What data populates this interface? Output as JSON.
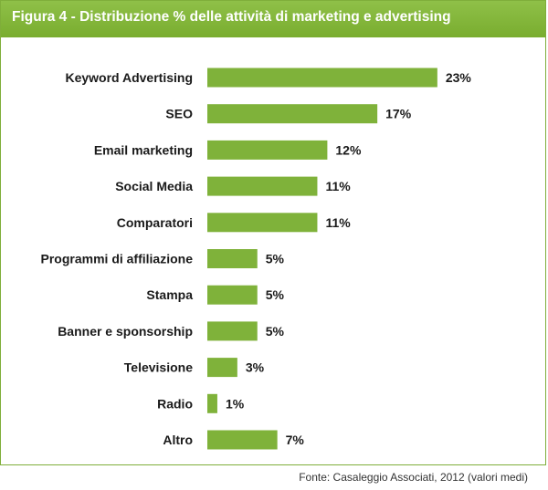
{
  "header": {
    "title": "Figura 4 -  Distribuzione % delle attività di marketing e advertising"
  },
  "footer": {
    "source": "Fonte: Casaleggio Associati, 2012 (valori medi)"
  },
  "colors": {
    "header_bg": "#82b53a",
    "bar_fill": "#7fb23a",
    "text": "#1a1a1a"
  },
  "chart_data": {
    "type": "bar",
    "orientation": "horizontal",
    "title": "",
    "xlabel": "",
    "ylabel": "",
    "xlim": [
      0,
      25
    ],
    "grid": false,
    "legend": "none",
    "categories": [
      "Keyword Advertising",
      "SEO",
      "Email marketing",
      "Social Media",
      "Comparatori",
      "Programmi di affiliazione",
      "Stampa",
      "Banner e sponsorship",
      "Televisione",
      "Radio",
      "Altro"
    ],
    "values": [
      23,
      17,
      12,
      11,
      11,
      5,
      5,
      5,
      3,
      1,
      7
    ],
    "data_labels": [
      "23%",
      "17%",
      "12%",
      "11%",
      "11%",
      "5%",
      "5%",
      "5%",
      "3%",
      "1%",
      "7%"
    ]
  }
}
